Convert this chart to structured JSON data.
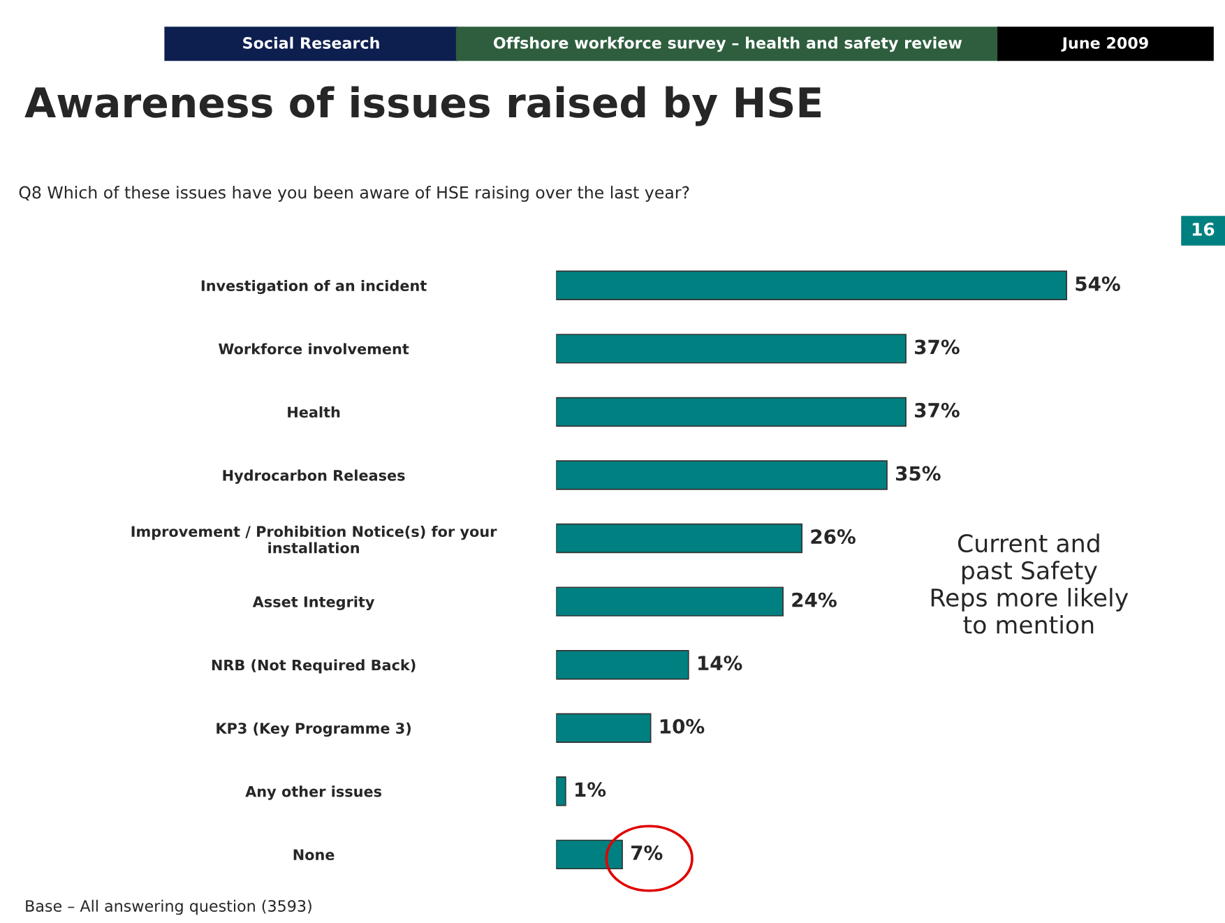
{
  "chart_data": {
    "type": "bar",
    "orientation": "horizontal",
    "data_labels": true,
    "title": "Awareness of issues raised by HSE",
    "subtitle": "Q8 Which of these issues have you been aware of HSE raising over the last year?",
    "categories": [
      "Investigation of an incident",
      "Workforce involvement",
      "Health",
      "Hydrocarbon Releases",
      "Improvement / Prohibition Notice(s) for your\ninstallation",
      "Asset Integrity",
      "NRB (Not Required Back)",
      "KP3 (Key Programme 3)",
      "Any other issues",
      "None"
    ],
    "values": [
      54,
      37,
      37,
      35,
      26,
      24,
      14,
      10,
      1,
      7
    ],
    "value_labels": [
      "54%",
      "37%",
      "37%",
      "35%",
      "26%",
      "24%",
      "14%",
      "10%",
      "1%",
      "7%"
    ],
    "color": "#008080",
    "annotations": [
      "Social Research",
      "Offshore workforce survey – health and safety review",
      "June 2009",
      "16",
      "Current and\npast Safety\nReps more likely\nto mention",
      "Base – All answering question (3593)"
    ]
  }
}
